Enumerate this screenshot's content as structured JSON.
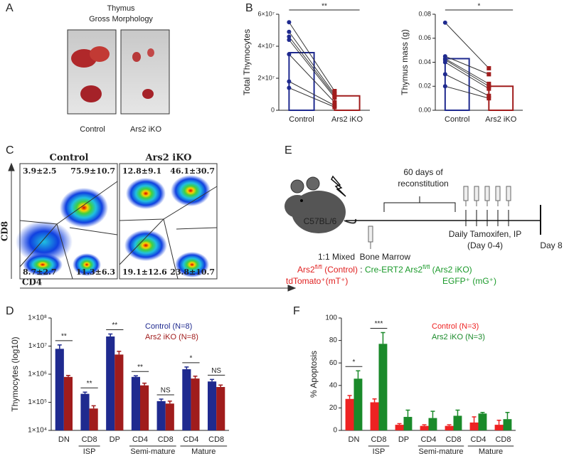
{
  "panels": {
    "a": "A",
    "b": "B",
    "c": "C",
    "d": "D",
    "e": "E",
    "f": "F"
  },
  "morphology": {
    "title": "Thymus",
    "subtitle": "Gross Morphology",
    "labels": [
      "Control",
      "Ars2 iKO"
    ]
  },
  "flow": {
    "titles": [
      "Control",
      "Ars2 iKO"
    ],
    "quadrants": [
      [
        "3.9±2.5",
        "75.9±10.7",
        "8.7±2.7",
        "11.3±6.3"
      ],
      [
        "12.8±9.1",
        "46.1±30.7",
        "19.1±12.6",
        "23.8±10.7"
      ]
    ],
    "y_label": "CD8",
    "x_label": "CD4"
  },
  "schematic": {
    "reconstitution": [
      "60 days of",
      "reconstitution"
    ],
    "mouse": "C57BL/6",
    "tamoxifen": [
      "Daily Tamoxifen, IP",
      "(Day 0-4)"
    ],
    "end": "Day 8",
    "mix": "1:1 Mixed  Bone Marrow",
    "control": {
      "name": "Ars2",
      "sup": "fl/fl",
      "tag": " (Control)",
      "reporter": "tdTomato⁺(mT⁺)"
    },
    "separator": " : ",
    "ko": {
      "name": "Cre-ERT2 Ars2",
      "sup": "fl/fl",
      "tag": " (Ars2 iKO)",
      "reporter": "EGFP⁺ (mG⁺)"
    }
  },
  "chart_data": [
    {
      "type": "bar",
      "y_label": "Total Thymocytes",
      "categories": [
        "Control",
        "Ars2 iKO"
      ],
      "values": [
        36000000,
        9000000
      ],
      "colors": [
        "#1f2a8f",
        "#a01c1c"
      ],
      "points": [
        [
          55000000,
          49000000,
          46000000,
          44000000,
          35000000,
          18000000,
          14000000
        ],
        [
          12000000,
          10000000,
          9000000,
          8000000,
          5000000,
          3000000,
          2000000
        ]
      ],
      "significance": "**",
      "ylim": [
        0,
        60000000
      ],
      "yticks": [
        0,
        {
          "value": 20000000,
          "label": "2×10⁷"
        },
        {
          "value": 40000000,
          "label": "4×10⁷"
        },
        {
          "value": 60000000,
          "label": "6×10⁷"
        }
      ]
    },
    {
      "type": "bar",
      "y_label": "Thymus mass (g)",
      "categories": [
        "Control",
        "Ars2 iKO"
      ],
      "values": [
        0.043,
        0.02
      ],
      "colors": [
        "#1f2a8f",
        "#a01c1c"
      ],
      "points": [
        [
          0.073,
          0.045,
          0.043,
          0.042,
          0.04,
          0.03,
          0.02
        ],
        [
          0.035,
          0.03,
          0.022,
          0.02,
          0.018,
          0.012,
          0.01
        ]
      ],
      "significance": "*",
      "ylim": [
        0,
        0.08
      ],
      "yticks": [
        {
          "value": 0,
          "label": "0.00"
        },
        {
          "value": 0.02,
          "label": "0.02"
        },
        {
          "value": 0.04,
          "label": "0.04"
        },
        {
          "value": 0.06,
          "label": "0.06"
        },
        {
          "value": 0.08,
          "label": "0.08"
        }
      ]
    },
    {
      "type": "bar",
      "y_label": "Thymocytes (log10)",
      "log_scale": true,
      "categories": [
        "DN",
        "CD8",
        "DP",
        "CD4",
        "CD8",
        "CD4",
        "CD8"
      ],
      "groups": [
        "ISP",
        "Semi-mature",
        "Mature"
      ],
      "series": [
        {
          "name": "Control (N=8)",
          "color": "#1f2a8f",
          "values": [
            8000000,
            200000,
            22000000,
            800000,
            110000,
            1500000,
            550000
          ],
          "errors": [
            3000000,
            30000,
            5000000,
            80000,
            20000,
            300000,
            100000
          ]
        },
        {
          "name": "Ars2 iKO (N=8)",
          "color": "#a01c1c",
          "values": [
            800000,
            60000,
            5000000,
            400000,
            90000,
            700000,
            350000
          ],
          "errors": [
            100000,
            15000,
            1500000,
            80000,
            20000,
            150000,
            60000
          ]
        }
      ],
      "significance": [
        "**",
        "**",
        "**",
        "**",
        "NS",
        "*",
        "NS"
      ],
      "legend": "top-right",
      "ylim": [
        10000,
        100000000
      ],
      "yticks": [
        {
          "value": 10000,
          "label": "1×10⁴"
        },
        {
          "value": 100000,
          "label": "1×10⁵"
        },
        {
          "value": 1000000,
          "label": "1×10⁶"
        },
        {
          "value": 10000000,
          "label": "1×10⁷"
        },
        {
          "value": 100000000,
          "label": "1×10⁸"
        }
      ]
    },
    {
      "type": "bar",
      "y_label": "% Apoptosis",
      "categories": [
        "DN",
        "CD8",
        "DP",
        "CD4",
        "CD8",
        "CD4",
        "CD8"
      ],
      "groups": [
        "ISP",
        "Semi-mature",
        "Mature"
      ],
      "series": [
        {
          "name": "Control (N=3)",
          "color": "#ee2222",
          "values": [
            28,
            25,
            5,
            4,
            4,
            7,
            5
          ],
          "errors": [
            3,
            3,
            1,
            1,
            1,
            5,
            4
          ]
        },
        {
          "name": "Ars2 iKO (N=3)",
          "color": "#1a8a2a",
          "values": [
            46,
            77,
            12,
            11,
            13,
            15,
            10
          ],
          "errors": [
            7,
            10,
            6,
            6,
            5,
            1,
            6
          ]
        }
      ],
      "significance": [
        "*",
        "***",
        null,
        null,
        null,
        null,
        null
      ],
      "legend": "top-right",
      "ylim": [
        0,
        100
      ],
      "yticks": [
        0,
        20,
        40,
        60,
        80,
        100
      ]
    }
  ]
}
